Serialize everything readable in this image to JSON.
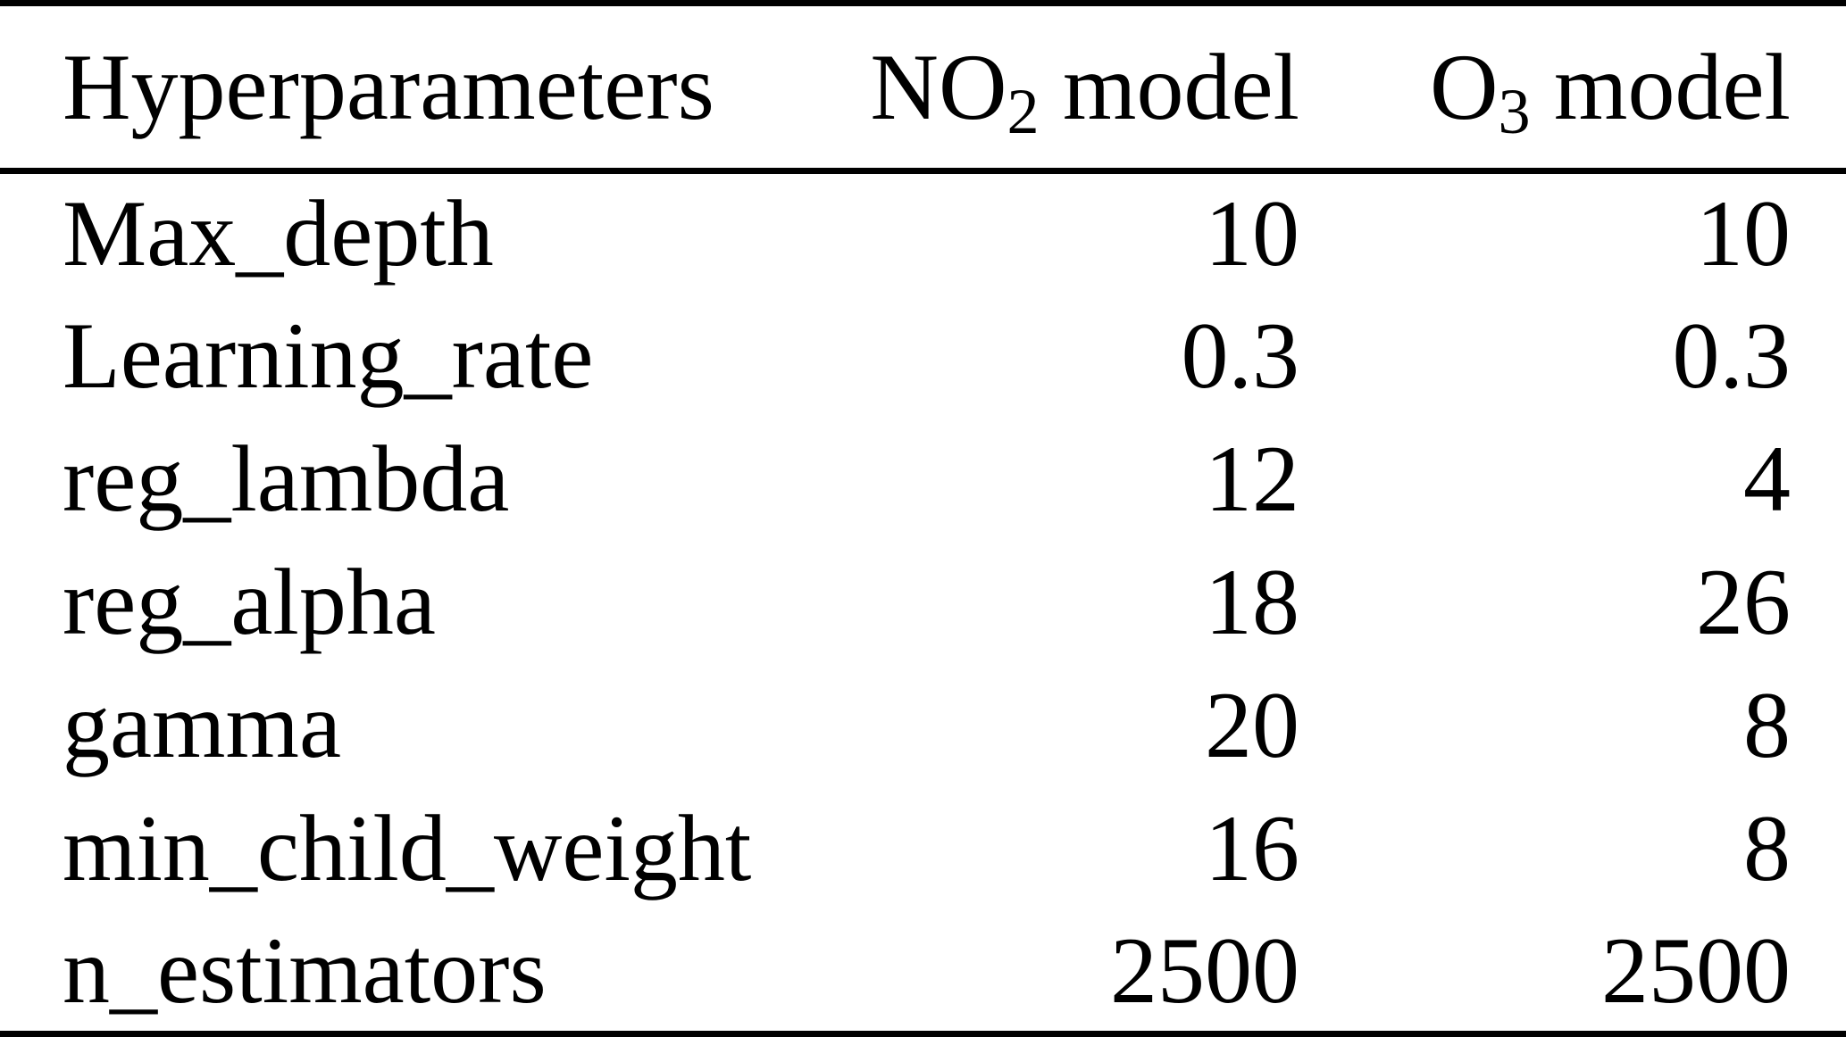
{
  "colors": {
    "background": "#ffffff",
    "text": "#000000",
    "rule": "#000000"
  },
  "table": {
    "header": {
      "hyperparameters": "Hyperparameters",
      "no2_model": {
        "prefix": "NO",
        "sub": "2",
        "suffix": " model"
      },
      "o3_model": {
        "prefix": "O",
        "sub": "3",
        "suffix": " model"
      }
    },
    "rows": [
      {
        "name": "Max_depth",
        "no2": "10",
        "o3": "10"
      },
      {
        "name": "Learning_rate",
        "no2": "0.3",
        "o3": "0.3"
      },
      {
        "name": "reg_lambda",
        "no2": "12",
        "o3": "4"
      },
      {
        "name": "reg_alpha",
        "no2": "18",
        "o3": "26"
      },
      {
        "name": "gamma",
        "no2": "20",
        "o3": "8"
      },
      {
        "name": "min_child_weight",
        "no2": "16",
        "o3": "8"
      },
      {
        "name": "n_estimators",
        "no2": "2500",
        "o3": "2500"
      }
    ]
  },
  "chart_data": {
    "type": "table",
    "columns": [
      "Hyperparameters",
      "NO2 model",
      "O3 model"
    ],
    "rows": [
      [
        "Max_depth",
        10,
        10
      ],
      [
        "Learning_rate",
        0.3,
        0.3
      ],
      [
        "reg_lambda",
        12,
        4
      ],
      [
        "reg_alpha",
        18,
        26
      ],
      [
        "gamma",
        20,
        8
      ],
      [
        "min_child_weight",
        16,
        8
      ],
      [
        "n_estimators",
        2500,
        2500
      ]
    ]
  }
}
